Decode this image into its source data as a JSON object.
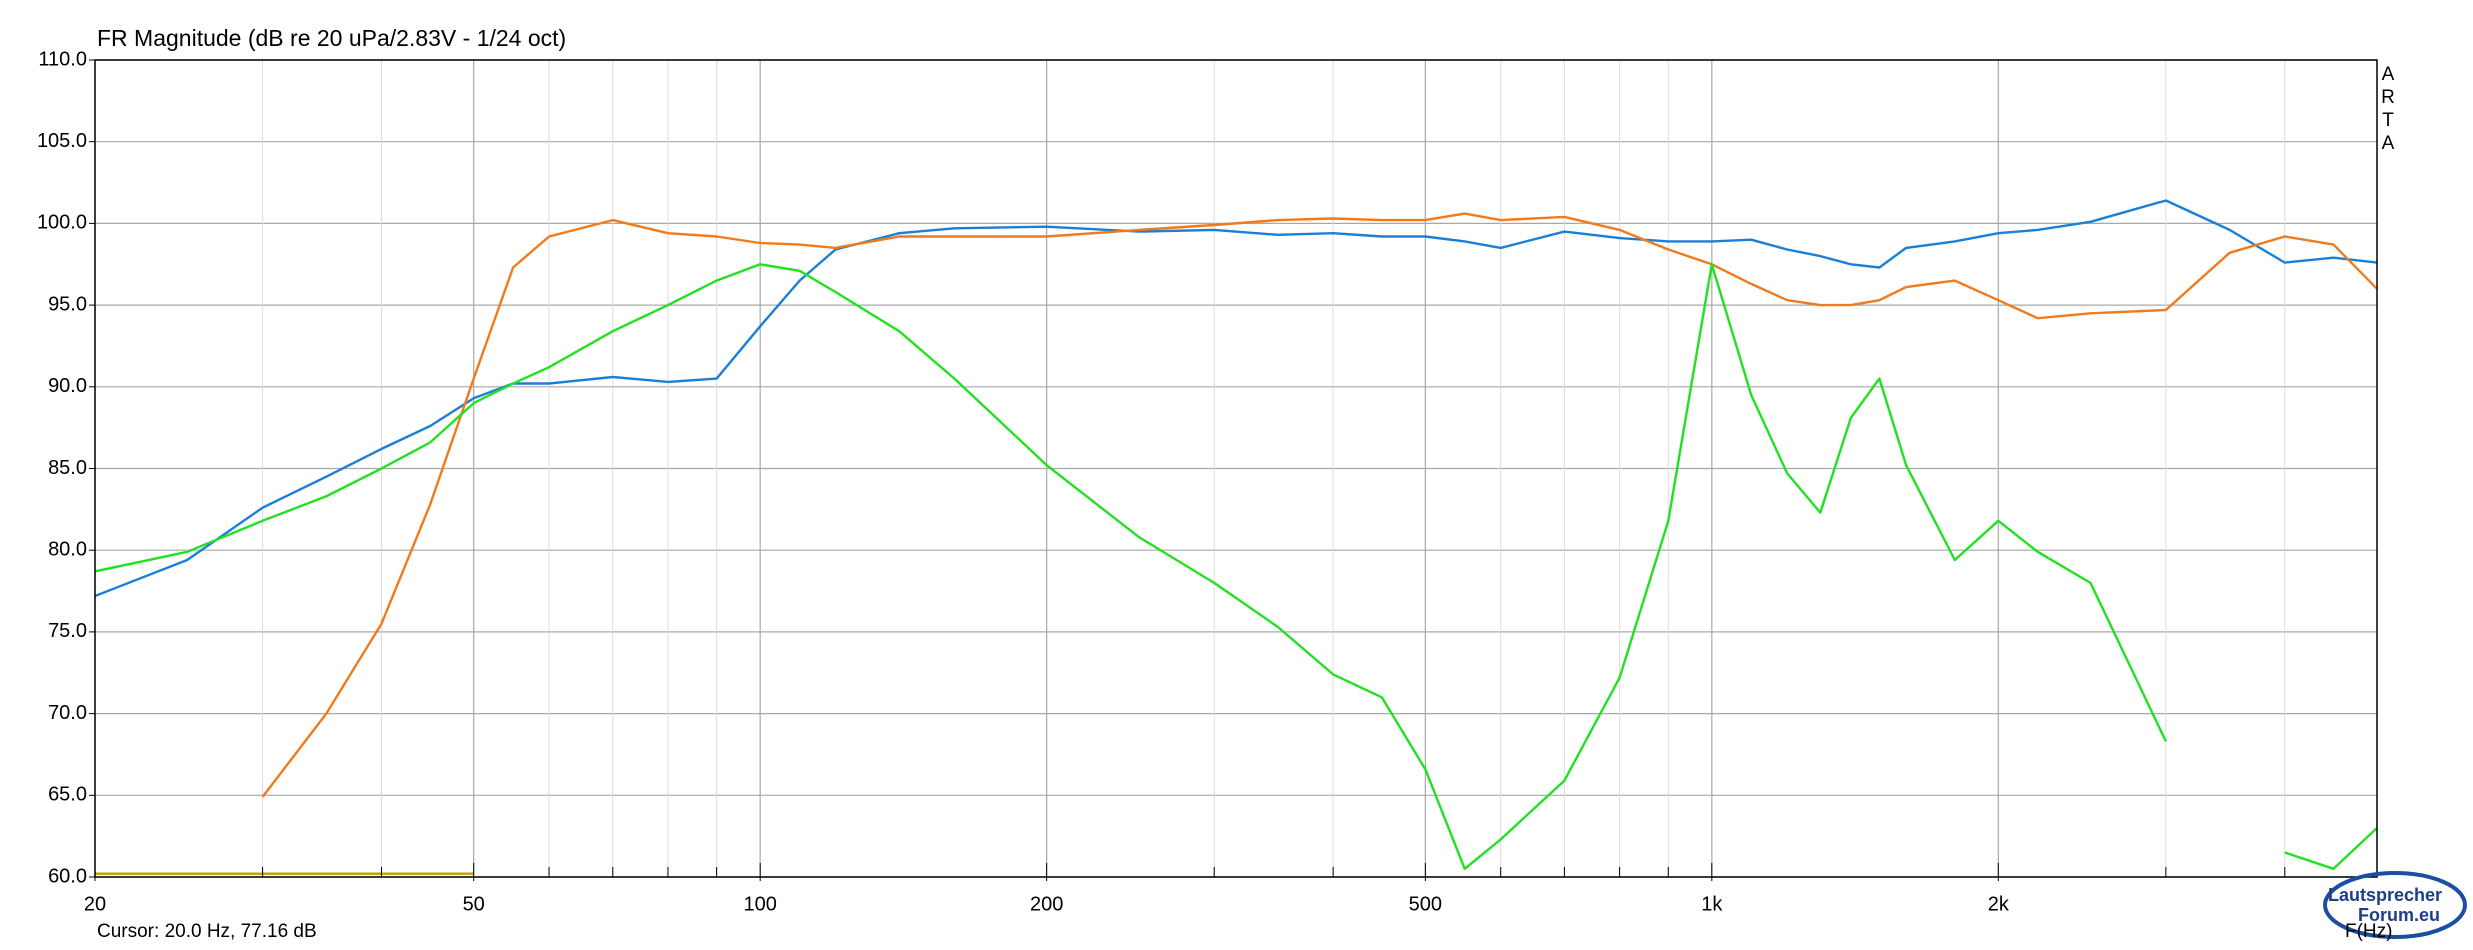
{
  "chart_data": {
    "type": "line",
    "title": "FR Magnitude (dB re 20 uPa/2.83V - 1/24 oct)",
    "watermark": "ARTA",
    "cursor": "Cursor: 20.0 Hz, 77.16 dB",
    "x_label": "F(Hz)",
    "logo": [
      "Lautsprecher",
      "Forum.eu"
    ],
    "x_scale": "log",
    "grid": true,
    "xlim": [
      20,
      5000
    ],
    "xticks": [
      20,
      50,
      100,
      200,
      500,
      {
        "value": 1000,
        "label": "1k"
      },
      {
        "value": 2000,
        "label": "2k"
      }
    ],
    "x_minor_ticks": [
      30,
      40,
      60,
      70,
      80,
      90,
      300,
      400,
      600,
      700,
      800,
      900,
      3000,
      4000
    ],
    "ylim": [
      60,
      110
    ],
    "yticks": [
      {
        "value": 60,
        "label": "60.0"
      },
      {
        "value": 65,
        "label": "65.0"
      },
      {
        "value": 70,
        "label": "70.0"
      },
      {
        "value": 75,
        "label": "75.0"
      },
      {
        "value": 80,
        "label": "80.0"
      },
      {
        "value": 85,
        "label": "85.0"
      },
      {
        "value": 90,
        "label": "90.0"
      },
      {
        "value": 95,
        "label": "95.0"
      },
      {
        "value": 100,
        "label": "100.0"
      },
      {
        "value": 105,
        "label": "105.0"
      },
      {
        "value": 110,
        "label": "110.0"
      }
    ],
    "x": [
      20,
      25,
      30,
      35,
      40,
      45,
      50,
      55,
      60,
      70,
      80,
      90,
      100,
      110,
      120,
      140,
      160,
      200,
      250,
      300,
      350,
      400,
      450,
      500,
      550,
      600,
      700,
      800,
      900,
      1000,
      1100,
      1200,
      1300,
      1400,
      1500,
      1600,
      1800,
      2000,
      2200,
      2500,
      3000,
      3500,
      4000,
      4500,
      5000
    ],
    "series": [
      {
        "color": "#1a7fd8",
        "values": [
          77.2,
          79.4,
          82.6,
          84.5,
          86.2,
          87.6,
          89.3,
          90.2,
          90.2,
          90.6,
          90.3,
          90.5,
          93.7,
          96.5,
          98.4,
          99.4,
          99.7,
          99.8,
          99.5,
          99.6,
          99.3,
          99.4,
          99.2,
          99.2,
          98.9,
          98.5,
          99.5,
          99.1,
          98.9,
          98.9,
          99.0,
          98.4,
          98.0,
          97.5,
          97.3,
          98.5,
          98.9,
          99.4,
          99.6,
          100.1,
          101.4,
          99.6,
          97.6,
          97.9,
          97.6
        ]
      },
      {
        "color": "#f07a1c",
        "values": [
          null,
          null,
          64.9,
          70.0,
          75.5,
          82.8,
          90.5,
          97.3,
          99.2,
          100.2,
          99.4,
          99.2,
          98.8,
          98.7,
          98.5,
          99.2,
          99.2,
          99.2,
          99.6,
          99.9,
          100.2,
          100.3,
          100.2,
          100.2,
          100.6,
          100.2,
          100.4,
          99.6,
          98.4,
          97.5,
          96.3,
          95.3,
          95.0,
          95.0,
          95.3,
          96.1,
          96.5,
          95.3,
          94.2,
          94.5,
          94.7,
          98.2,
          99.2,
          98.7,
          96.0
        ]
      },
      {
        "color": "#22e022",
        "values": [
          78.7,
          79.9,
          81.8,
          83.3,
          85.0,
          86.6,
          89.0,
          90.2,
          91.2,
          93.4,
          95.0,
          96.5,
          97.5,
          97.1,
          95.8,
          93.4,
          90.5,
          85.2,
          80.8,
          78.0,
          75.3,
          72.4,
          71.0,
          66.6,
          60.5,
          62.3,
          65.9,
          72.2,
          81.8,
          97.5,
          89.5,
          84.7,
          82.3,
          88.1,
          90.5,
          85.2,
          79.4,
          81.8,
          79.9,
          78.0,
          68.3,
          null,
          61.5,
          60.5,
          63.0
        ]
      },
      {
        "color": "#c0a000",
        "values": [
          60.2,
          60.2,
          60.2,
          60.2,
          60.2,
          60.2,
          60.2,
          null,
          null,
          null,
          null,
          null,
          null,
          null,
          null,
          null,
          null,
          null,
          null,
          null,
          null,
          null,
          null,
          null,
          null,
          null,
          null,
          null,
          null,
          null,
          null,
          null,
          null,
          null,
          null,
          null,
          null,
          null,
          null,
          null,
          null,
          null,
          null,
          null,
          null
        ]
      }
    ]
  }
}
